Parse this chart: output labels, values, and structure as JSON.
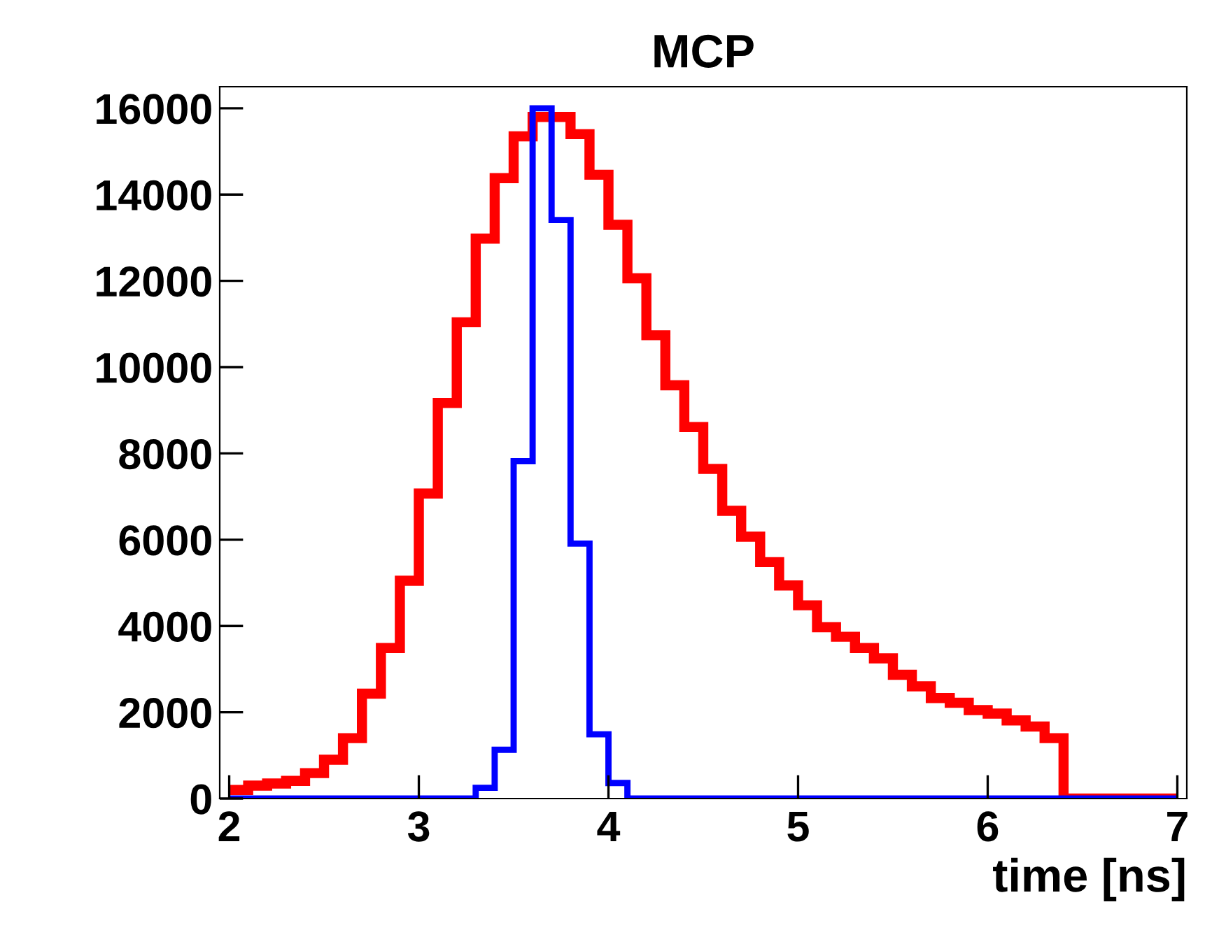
{
  "chart_data": {
    "type": "histogram",
    "title": "MCP",
    "xlabel": "time [ns]",
    "bins": [
      2.0,
      2.1,
      2.2,
      2.3,
      2.4,
      2.5,
      2.6,
      2.7,
      2.8,
      2.9,
      3.0,
      3.1,
      3.2,
      3.3,
      3.4,
      3.5,
      3.6,
      3.7,
      3.8,
      3.9,
      4.0,
      4.1,
      4.2,
      4.3,
      4.4,
      4.5,
      4.6,
      4.7,
      4.8,
      4.9,
      5.0,
      5.1,
      5.2,
      5.3,
      5.4,
      5.5,
      5.6,
      5.7,
      5.8,
      5.9,
      6.0,
      6.1,
      6.2,
      6.3,
      6.4,
      6.5,
      6.6,
      6.7,
      6.8,
      6.9,
      7.0
    ],
    "series": [
      {
        "color": "#ff0000",
        "values": [
          200,
          300,
          350,
          410,
          590,
          900,
          1400,
          2430,
          3490,
          5050,
          7070,
          9170,
          11040,
          12980,
          14380,
          15350,
          15800,
          15800,
          15400,
          14460,
          13300,
          12060,
          10740,
          9580,
          8610,
          7640,
          6670,
          6070,
          5480,
          4940,
          4480,
          3970,
          3750,
          3490,
          3250,
          2870,
          2600,
          2330,
          2220,
          2050,
          1970,
          1810,
          1670,
          1400,
          0,
          0,
          0,
          0,
          0,
          0
        ]
      },
      {
        "color": "#0000ff",
        "values": [
          0,
          0,
          0,
          0,
          0,
          0,
          0,
          0,
          0,
          0,
          0,
          0,
          0,
          250,
          1130,
          7820,
          16000,
          13410,
          5910,
          1490,
          360,
          0,
          0,
          0,
          0,
          0,
          0,
          0,
          0,
          0,
          0,
          0,
          0,
          0,
          0,
          0,
          0,
          0,
          0,
          0,
          0,
          0,
          0,
          0,
          0,
          0,
          0,
          0,
          0,
          0
        ]
      }
    ],
    "xlim": [
      1.95,
      7.05
    ],
    "ylim": [
      0,
      16500
    ],
    "xticks": [
      2,
      3,
      4,
      5,
      6,
      7
    ],
    "yticks": [
      0,
      2000,
      4000,
      6000,
      8000,
      10000,
      12000,
      14000,
      16000
    ],
    "grid": false,
    "legend": false
  }
}
